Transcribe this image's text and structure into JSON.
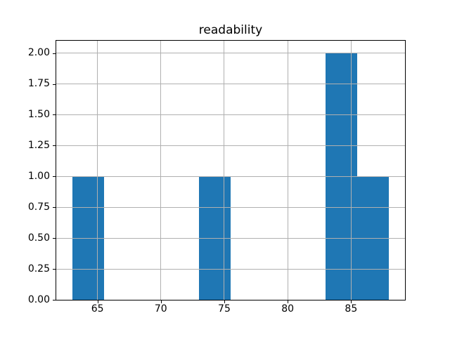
{
  "chart_data": {
    "type": "bar",
    "subtype": "histogram",
    "title": "readability",
    "xlabel": "",
    "ylabel": "",
    "bars": [
      {
        "x0": 63.0,
        "x1": 65.5,
        "count": 1
      },
      {
        "x0": 73.0,
        "x1": 75.5,
        "count": 1
      },
      {
        "x0": 83.0,
        "x1": 85.5,
        "count": 2
      },
      {
        "x0": 85.5,
        "x1": 88.0,
        "count": 1
      }
    ],
    "bin_width": 2.5,
    "xlim": [
      61.75,
      89.25
    ],
    "ylim": [
      0,
      2.1
    ],
    "xticks": [
      {
        "value": 65,
        "label": "65"
      },
      {
        "value": 70,
        "label": "70"
      },
      {
        "value": 75,
        "label": "75"
      },
      {
        "value": 80,
        "label": "80"
      },
      {
        "value": 85,
        "label": "85"
      }
    ],
    "yticks": [
      {
        "value": 0.0,
        "label": "0.00"
      },
      {
        "value": 0.25,
        "label": "0.25"
      },
      {
        "value": 0.5,
        "label": "0.50"
      },
      {
        "value": 0.75,
        "label": "0.75"
      },
      {
        "value": 1.0,
        "label": "1.00"
      },
      {
        "value": 1.25,
        "label": "1.25"
      },
      {
        "value": 1.5,
        "label": "1.50"
      },
      {
        "value": 1.75,
        "label": "1.75"
      },
      {
        "value": 2.0,
        "label": "2.00"
      }
    ],
    "grid": true,
    "grid_above_bars": true,
    "legend": null,
    "colors": {
      "bar": "#1f77b4",
      "grid": "#b0b0b0",
      "spine": "#000000",
      "tick": "#000000",
      "text": "#000000",
      "background": "#ffffff"
    }
  }
}
